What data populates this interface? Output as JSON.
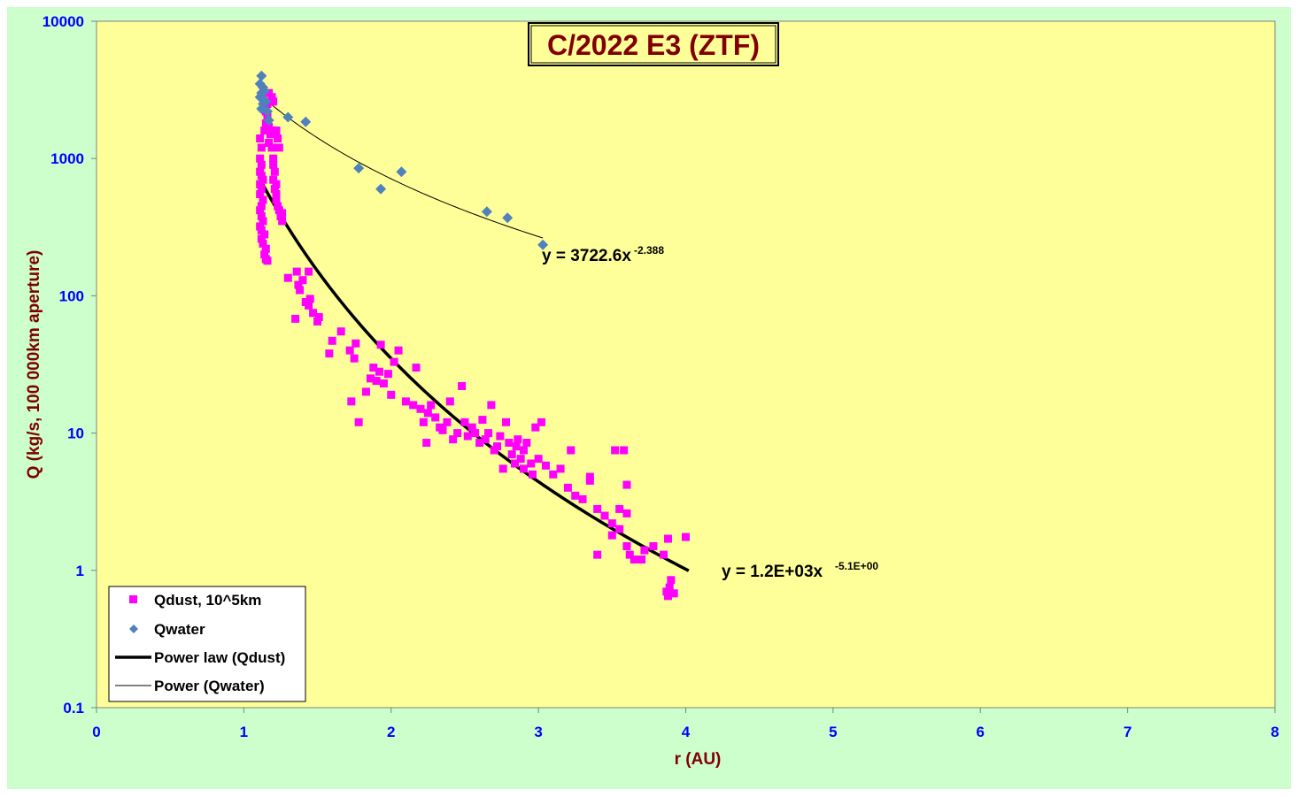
{
  "chart_data": {
    "type": "scatter",
    "title": "C/2022 E3 (ZTF)",
    "xlabel": "r (AU)",
    "ylabel": "Q (kg/s, 100 000km aperture)",
    "xlim": [
      0,
      8
    ],
    "ylim": [
      0.1,
      10000
    ],
    "yscale": "log",
    "grid": false,
    "legend_placement": "bottom-left",
    "x_ticks": [
      "0",
      "1",
      "2",
      "3",
      "4",
      "5",
      "6",
      "7",
      "8"
    ],
    "y_ticks": [
      "0.1",
      "1",
      "10",
      "100",
      "1000",
      "10000"
    ],
    "colors": {
      "plot_background": "#ffff99",
      "chart_background": "#ccffcc",
      "qdust": "#ff00ff",
      "qwater": "#4f81bd",
      "fit_lines": "#000000",
      "axis_titles": "#800000",
      "tick_labels": "#0000ff"
    },
    "series": [
      {
        "name": "Qdust, 10^5km",
        "marker": "square",
        "color": "#ff00ff",
        "points": [
          [
            1.11,
            1400
          ],
          [
            1.12,
            1200
          ],
          [
            1.11,
            1000
          ],
          [
            1.12,
            900
          ],
          [
            1.11,
            800
          ],
          [
            1.12,
            750
          ],
          [
            1.13,
            700
          ],
          [
            1.11,
            650
          ],
          [
            1.12,
            600
          ],
          [
            1.11,
            550
          ],
          [
            1.13,
            500
          ],
          [
            1.12,
            450
          ],
          [
            1.11,
            420
          ],
          [
            1.12,
            380
          ],
          [
            1.13,
            350
          ],
          [
            1.11,
            320
          ],
          [
            1.12,
            300
          ],
          [
            1.14,
            280
          ],
          [
            1.12,
            260
          ],
          [
            1.13,
            240
          ],
          [
            1.15,
            220
          ],
          [
            1.14,
            200
          ],
          [
            1.15,
            185
          ],
          [
            1.16,
            180
          ],
          [
            1.14,
            1600
          ],
          [
            1.15,
            1800
          ],
          [
            1.16,
            2000
          ],
          [
            1.16,
            2500
          ],
          [
            1.15,
            2200
          ],
          [
            1.17,
            1700
          ],
          [
            1.18,
            1500
          ],
          [
            1.17,
            1300
          ],
          [
            1.19,
            1200
          ],
          [
            1.2,
            1000
          ],
          [
            1.2,
            900
          ],
          [
            1.21,
            800
          ],
          [
            1.2,
            700
          ],
          [
            1.22,
            650
          ],
          [
            1.21,
            600
          ],
          [
            1.22,
            550
          ],
          [
            1.22,
            500
          ],
          [
            1.23,
            450
          ],
          [
            1.24,
            420
          ],
          [
            1.25,
            380
          ],
          [
            1.26,
            350
          ],
          [
            1.22,
            1600
          ],
          [
            1.23,
            1400
          ],
          [
            1.19,
            2800
          ],
          [
            1.17,
            3000
          ],
          [
            1.2,
            2600
          ],
          [
            1.24,
            1200
          ],
          [
            1.26,
            400
          ],
          [
            1.3,
            135
          ],
          [
            1.36,
            150
          ],
          [
            1.37,
            120
          ],
          [
            1.38,
            110
          ],
          [
            1.4,
            130
          ],
          [
            1.42,
            90
          ],
          [
            1.44,
            85
          ],
          [
            1.45,
            95
          ],
          [
            1.47,
            75
          ],
          [
            1.5,
            65
          ],
          [
            1.51,
            70
          ],
          [
            1.35,
            68
          ],
          [
            1.44,
            150
          ],
          [
            1.58,
            38
          ],
          [
            1.6,
            47
          ],
          [
            1.66,
            55
          ],
          [
            1.72,
            40
          ],
          [
            1.73,
            17
          ],
          [
            1.75,
            35
          ],
          [
            1.76,
            45
          ],
          [
            1.78,
            12
          ],
          [
            1.83,
            20
          ],
          [
            1.86,
            25
          ],
          [
            1.88,
            30
          ],
          [
            1.9,
            24
          ],
          [
            1.92,
            28
          ],
          [
            1.93,
            44
          ],
          [
            1.95,
            23
          ],
          [
            1.98,
            27
          ],
          [
            2.0,
            19
          ],
          [
            2.02,
            33
          ],
          [
            2.05,
            40
          ],
          [
            2.1,
            17
          ],
          [
            2.15,
            16
          ],
          [
            2.17,
            30
          ],
          [
            2.2,
            15
          ],
          [
            2.22,
            12
          ],
          [
            2.24,
            8.5
          ],
          [
            2.25,
            14
          ],
          [
            2.27,
            16
          ],
          [
            2.3,
            13
          ],
          [
            2.33,
            11
          ],
          [
            2.35,
            10.5
          ],
          [
            2.38,
            12
          ],
          [
            2.4,
            17
          ],
          [
            2.42,
            9
          ],
          [
            2.45,
            10
          ],
          [
            2.48,
            22
          ],
          [
            2.5,
            12
          ],
          [
            2.52,
            9.5
          ],
          [
            2.55,
            11
          ],
          [
            2.57,
            10
          ],
          [
            2.6,
            8.5
          ],
          [
            2.62,
            12.5
          ],
          [
            2.64,
            9
          ],
          [
            2.66,
            10
          ],
          [
            2.68,
            16
          ],
          [
            2.7,
            7.5
          ],
          [
            2.72,
            8
          ],
          [
            2.74,
            9.5
          ],
          [
            2.76,
            5.5
          ],
          [
            2.78,
            12
          ],
          [
            2.8,
            8.5
          ],
          [
            2.82,
            7
          ],
          [
            2.84,
            6
          ],
          [
            2.86,
            9
          ],
          [
            2.88,
            6.5
          ],
          [
            2.9,
            7.5
          ],
          [
            2.92,
            8.5
          ],
          [
            2.95,
            6
          ],
          [
            2.98,
            11
          ],
          [
            3.02,
            12
          ],
          [
            3.05,
            5.8
          ],
          [
            3.1,
            5
          ],
          [
            3.15,
            5.5
          ],
          [
            3.2,
            4
          ],
          [
            3.22,
            7.5
          ],
          [
            3.25,
            3.5
          ],
          [
            3.3,
            3.3
          ],
          [
            3.35,
            4.5
          ],
          [
            3.4,
            2.8
          ],
          [
            3.45,
            2.5
          ],
          [
            3.5,
            2.2
          ],
          [
            3.52,
            7.5
          ],
          [
            3.55,
            2
          ],
          [
            3.58,
            7.5
          ],
          [
            3.6,
            1.5
          ],
          [
            3.62,
            1.3
          ],
          [
            3.65,
            1.2
          ],
          [
            3.7,
            1.2
          ],
          [
            3.72,
            1.4
          ],
          [
            3.78,
            1.5
          ],
          [
            3.85,
            1.3
          ],
          [
            3.88,
            1.7
          ],
          [
            3.9,
            0.85
          ],
          [
            3.89,
            0.75
          ],
          [
            3.87,
            0.7
          ],
          [
            3.88,
            0.65
          ],
          [
            3.92,
            0.68
          ],
          [
            4.0,
            1.75
          ],
          [
            3.6,
            4.2
          ],
          [
            3.55,
            2.8
          ],
          [
            3.6,
            2.6
          ],
          [
            3.5,
            1.8
          ],
          [
            3.4,
            1.3
          ],
          [
            3.35,
            4.8
          ],
          [
            3.0,
            6.5
          ],
          [
            2.96,
            5
          ],
          [
            2.9,
            5.5
          ],
          [
            2.85,
            8
          ]
        ]
      },
      {
        "name": "Qwater",
        "marker": "diamond",
        "color": "#4f81bd",
        "points": [
          [
            1.12,
            4000
          ],
          [
            1.11,
            3500
          ],
          [
            1.13,
            3300
          ],
          [
            1.12,
            3000
          ],
          [
            1.14,
            3100
          ],
          [
            1.11,
            2800
          ],
          [
            1.13,
            2500
          ],
          [
            1.12,
            2300
          ],
          [
            1.15,
            2600
          ],
          [
            1.16,
            2200
          ],
          [
            1.17,
            1900
          ],
          [
            1.3,
            2000
          ],
          [
            1.42,
            1850
          ],
          [
            1.78,
            850
          ],
          [
            1.93,
            600
          ],
          [
            2.07,
            800
          ],
          [
            2.65,
            410
          ],
          [
            2.79,
            370
          ],
          [
            3.03,
            235
          ]
        ]
      }
    ],
    "fits": [
      {
        "name": "Power law (Qdust)",
        "coefficient": 1200,
        "exponent": -5.1,
        "x_range": [
          1.11,
          4.02
        ],
        "label": "y = 1.2E+03x",
        "label_exponent": "-5.1E+00",
        "line_width": "thick"
      },
      {
        "name": "Power (Qwater)",
        "coefficient": 3722.6,
        "exponent": -2.388,
        "x_range": [
          1.11,
          3.03
        ],
        "label": "y = 3722.6x",
        "label_exponent": "-2.388",
        "line_width": "thin"
      }
    ],
    "legend": [
      {
        "label": "Qdust, 10^5km",
        "symbol": "square-marker"
      },
      {
        "label": "Qwater",
        "symbol": "diamond-marker"
      },
      {
        "label": "Power law (Qdust)",
        "symbol": "thick-line"
      },
      {
        "label": "Power (Qwater)",
        "symbol": "thin-line"
      }
    ]
  }
}
